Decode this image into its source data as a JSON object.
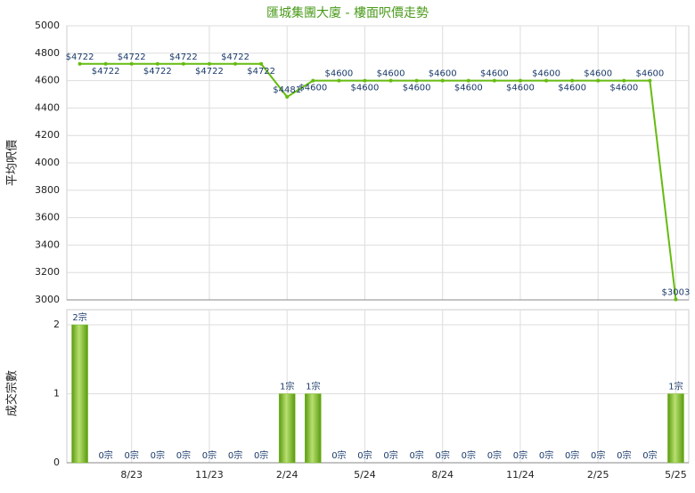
{
  "chart_data": [
    {
      "type": "line",
      "title": "匯城集團大廈 - 樓面呎價走勢",
      "y_label": "平均呎價",
      "color": "#66bb11",
      "values": [
        4722,
        4722,
        4722,
        4722,
        4722,
        4722,
        4722,
        4722,
        4481,
        4600,
        4600,
        4600,
        4600,
        4600,
        4600,
        4600,
        4600,
        4600,
        4600,
        4600,
        4600,
        4600,
        4600,
        3003
      ],
      "value_labels": [
        "$4722",
        "$4722",
        "$4722",
        "$4722",
        "$4722",
        "$4722",
        "$4722",
        "$4722",
        "$4481",
        "$4600",
        "$4600",
        "$4600",
        "$4600",
        "$4600",
        "$4600",
        "$4600",
        "$4600",
        "$4600",
        "$4600",
        "$4600",
        "$4600",
        "$4600",
        "$4600",
        "$3003"
      ],
      "ylim": [
        3000,
        5000
      ],
      "yticks": [
        3000,
        3200,
        3400,
        3600,
        3800,
        4000,
        4200,
        4400,
        4600,
        4800,
        5000
      ],
      "grid": true
    },
    {
      "type": "bar",
      "y_label": "成交宗數",
      "color": "#77bb22",
      "categories": [
        null,
        null,
        "8/23",
        null,
        null,
        "11/23",
        null,
        null,
        "2/24",
        null,
        null,
        "5/24",
        null,
        null,
        "8/24",
        null,
        null,
        "11/24",
        null,
        null,
        "2/25",
        null,
        null,
        "5/25"
      ],
      "values": [
        2,
        0,
        0,
        0,
        0,
        0,
        0,
        0,
        1,
        1,
        0,
        0,
        0,
        0,
        0,
        0,
        0,
        0,
        0,
        0,
        0,
        0,
        0,
        1
      ],
      "value_labels": [
        "2宗",
        "0宗",
        "0宗",
        "0宗",
        "0宗",
        "0宗",
        "0宗",
        "0宗",
        "1宗",
        "1宗",
        "0宗",
        "0宗",
        "0宗",
        "0宗",
        "0宗",
        "0宗",
        "0宗",
        "0宗",
        "0宗",
        "0宗",
        "0宗",
        "0宗",
        "0宗",
        "1宗"
      ],
      "ylim": [
        0,
        2
      ],
      "yticks": [
        0,
        1,
        2
      ],
      "grid": true
    }
  ]
}
